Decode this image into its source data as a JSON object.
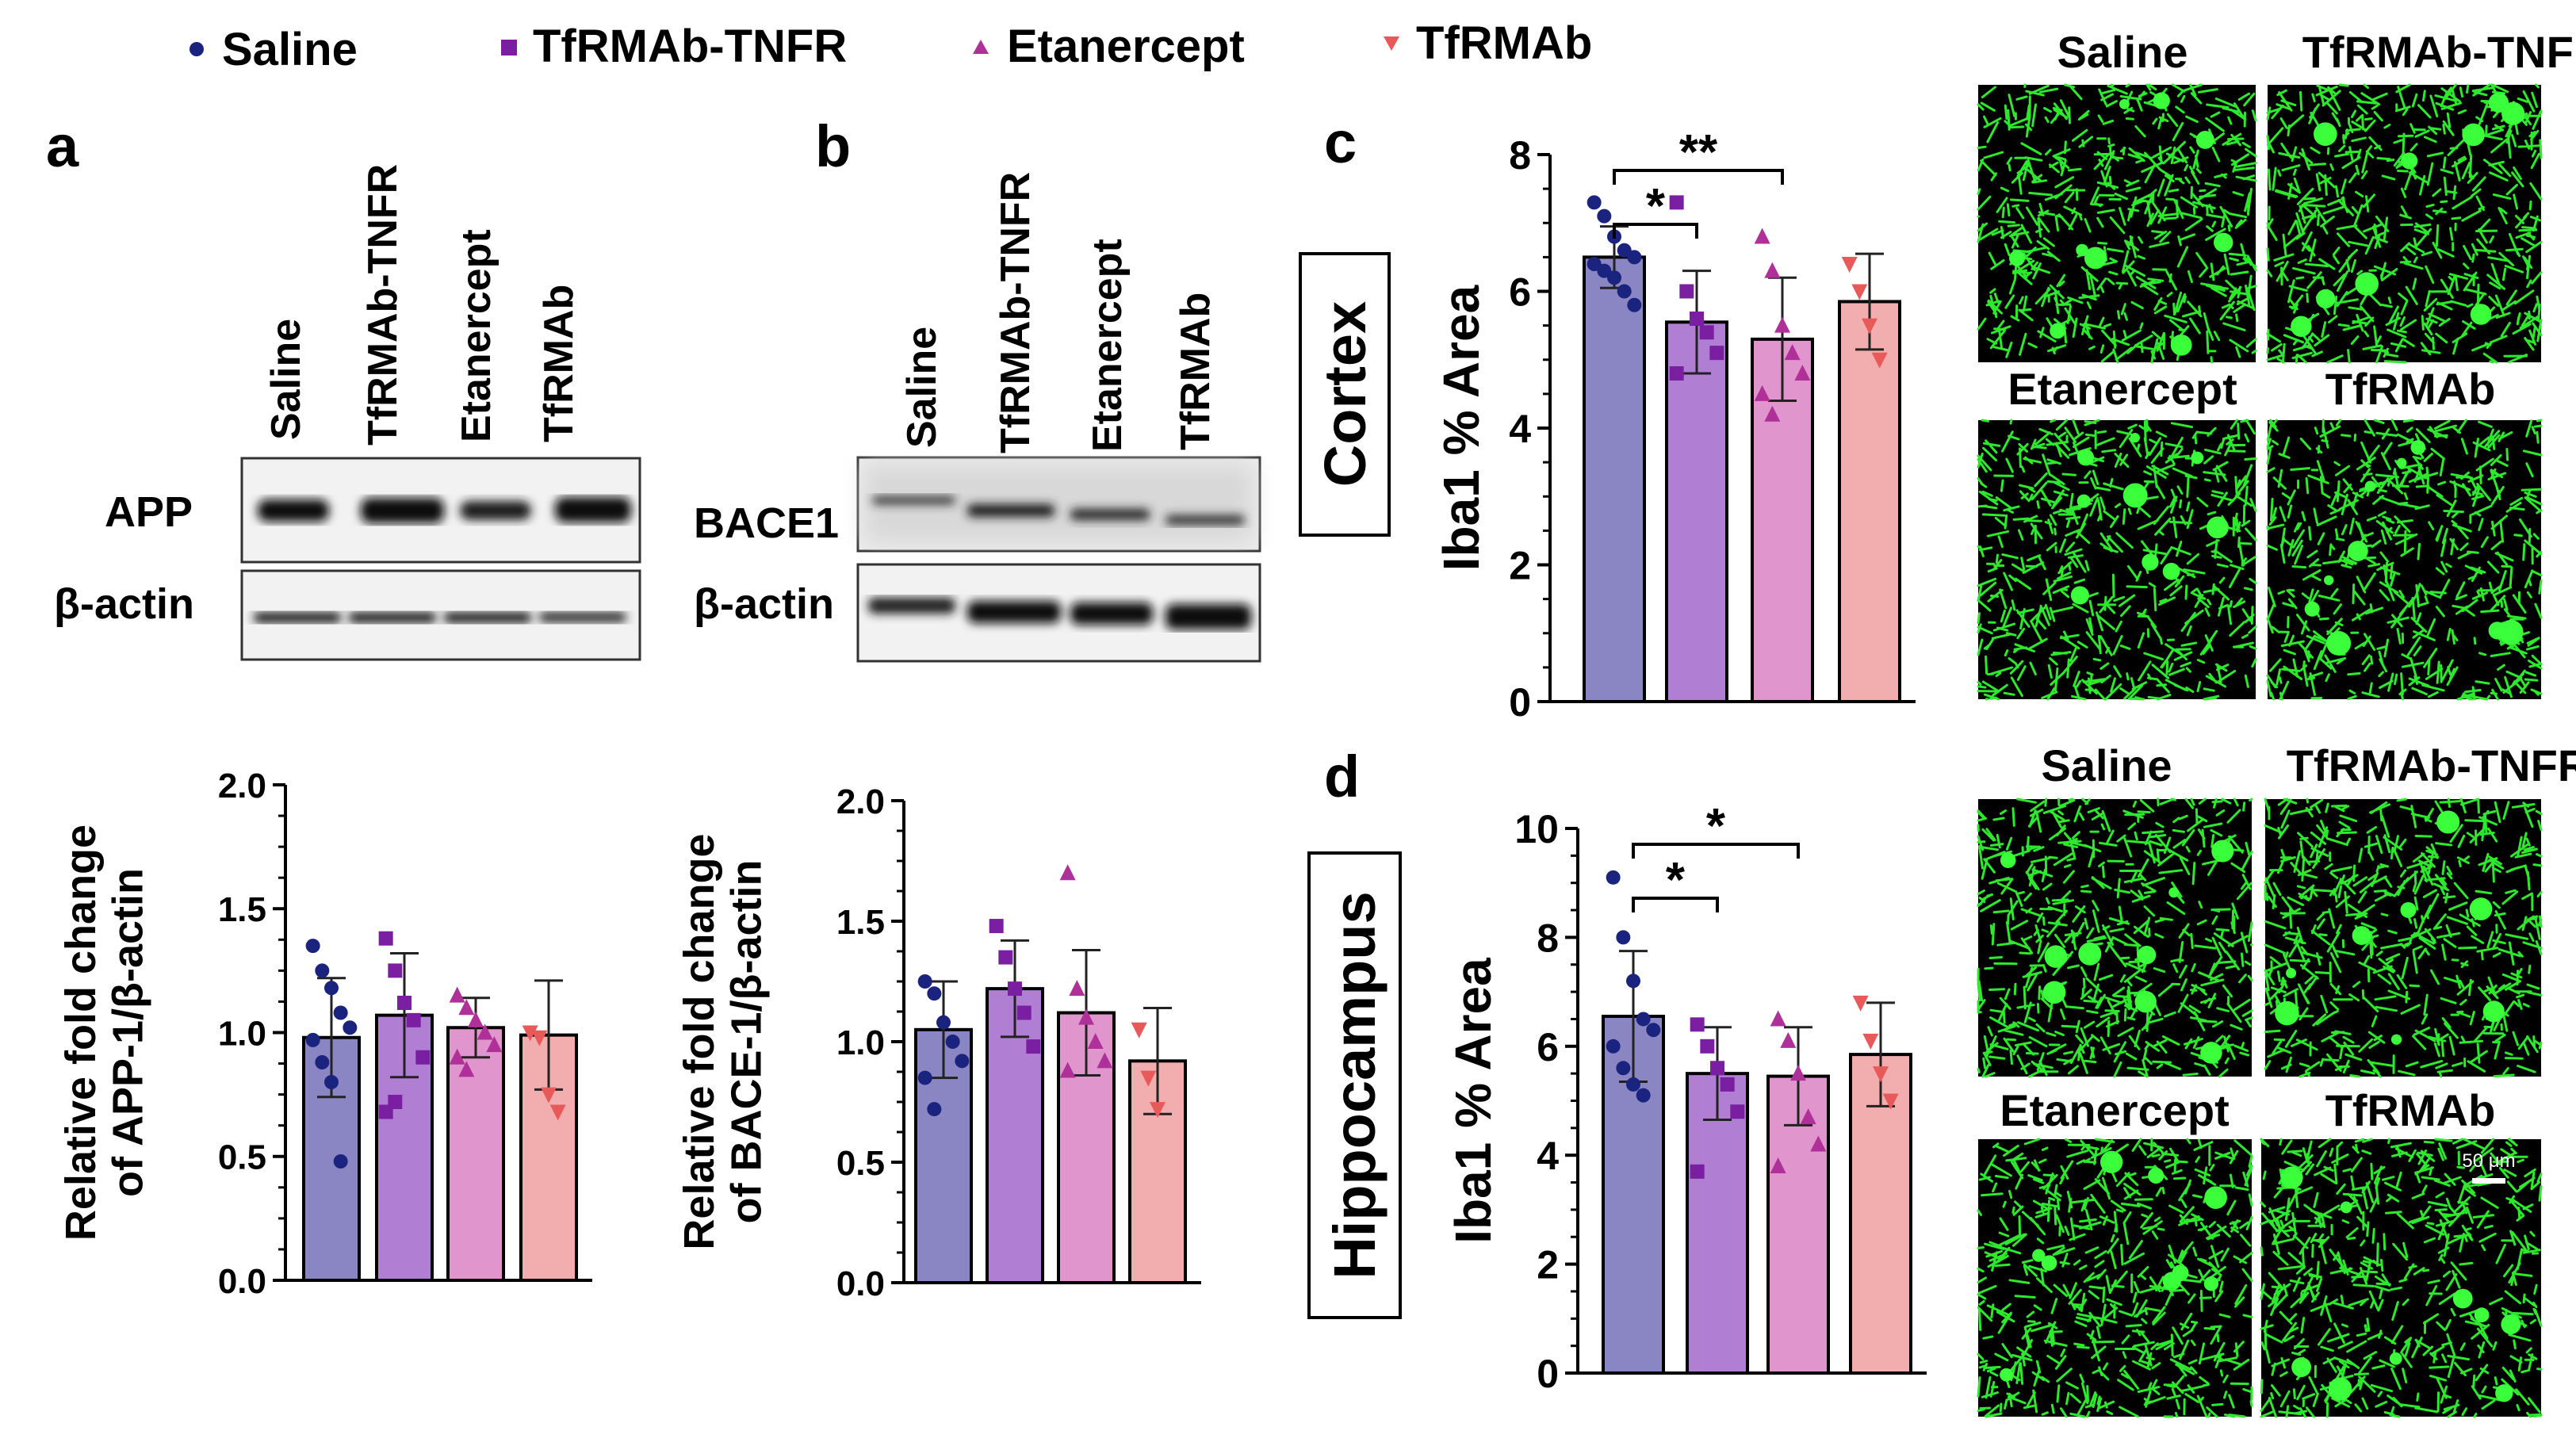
{
  "legend": [
    {
      "label": "Saline",
      "marker": "circle",
      "color": "#1a237e"
    },
    {
      "label": "TfRMAb-TNFR",
      "marker": "square",
      "color": "#7b1fa2"
    },
    {
      "label": "Etanercept",
      "marker": "triangle",
      "color": "#b0309a"
    },
    {
      "label": "TfRMAb",
      "marker": "triangle-down",
      "color": "#e85a5a"
    }
  ],
  "bar_colors": [
    "#8a86c3",
    "#b07fd4",
    "#e095cd",
    "#f2aeaf"
  ],
  "panel_letters": {
    "a": "a",
    "b": "b",
    "c": "c",
    "d": "d"
  },
  "blots": {
    "a": {
      "lanes": [
        "Saline",
        "TfRMAb-TNFR",
        "Etanercept",
        "TfRMAb"
      ],
      "rows": [
        "APP",
        "β-actin"
      ]
    },
    "b": {
      "lanes": [
        "Saline",
        "TfRMAb-TNFR",
        "Etanercept",
        "TfRMAb"
      ],
      "rows": [
        "BACE1",
        "β-actin"
      ]
    }
  },
  "region_labels": {
    "c": "Cortex",
    "d": "Hippocampus"
  },
  "chart_data": [
    {
      "id": "a",
      "type": "bar",
      "categories": [
        "Saline",
        "TfRMAb-TNFR",
        "Etanercept",
        "TfRMAb"
      ],
      "values": [
        0.98,
        1.07,
        1.02,
        0.99
      ],
      "errors": [
        0.24,
        0.25,
        0.12,
        0.22
      ],
      "points": [
        [
          1.35,
          1.25,
          1.18,
          1.08,
          1.02,
          0.97,
          0.88,
          0.8,
          0.48
        ],
        [
          1.38,
          1.25,
          1.12,
          1.05,
          0.9,
          0.68,
          0.72
        ],
        [
          1.15,
          1.1,
          1.05,
          1.0,
          0.95,
          0.9,
          0.85
        ],
        [
          1.0,
          0.98,
          0.75,
          0.68
        ]
      ],
      "title": "",
      "ylabel": "Relative fold change of APP-1/β-actin",
      "ylim": [
        0,
        2.0
      ],
      "yticks": [
        "0.0",
        "0.5",
        "1.0",
        "1.5",
        "2.0"
      ]
    },
    {
      "id": "b",
      "type": "bar",
      "categories": [
        "Saline",
        "TfRMAb-TNFR",
        "Etanercept",
        "TfRMAb"
      ],
      "values": [
        1.05,
        1.22,
        1.12,
        0.92
      ],
      "errors": [
        0.2,
        0.2,
        0.26,
        0.22
      ],
      "points": [
        [
          1.25,
          1.2,
          1.08,
          1.0,
          0.92,
          0.85,
          0.72
        ],
        [
          1.48,
          1.35,
          1.22,
          1.12,
          0.98
        ],
        [
          1.7,
          1.22,
          1.1,
          1.0,
          0.92,
          0.88
        ],
        [
          1.05,
          0.85,
          0.72
        ]
      ],
      "title": "",
      "ylabel": "Relative fold change of BACE-1/β-actin",
      "ylim": [
        0,
        2.0
      ],
      "yticks": [
        "0.0",
        "0.5",
        "1.0",
        "1.5",
        "2.0"
      ]
    },
    {
      "id": "c",
      "type": "bar",
      "categories": [
        "Saline",
        "TfRMAb-TNFR",
        "Etanercept",
        "TfRMAb"
      ],
      "values": [
        6.5,
        5.55,
        5.3,
        5.85
      ],
      "errors": [
        0.45,
        0.75,
        0.9,
        0.7
      ],
      "points": [
        [
          7.3,
          7.1,
          6.8,
          6.6,
          6.5,
          6.4,
          6.3,
          6.2,
          6.0,
          5.8
        ],
        [
          7.3,
          6.0,
          5.6,
          5.4,
          5.1,
          4.8
        ],
        [
          6.8,
          6.3,
          5.5,
          5.1,
          4.8,
          4.5,
          4.2
        ],
        [
          6.4,
          6.0,
          5.5,
          5.0
        ]
      ],
      "significance": [
        {
          "from": 0,
          "to": 1,
          "label": "*"
        },
        {
          "from": 0,
          "to": 2,
          "label": "**"
        }
      ],
      "region": "Cortex",
      "ylabel": "Iba1 % Area",
      "ylim": [
        0,
        8
      ],
      "yticks": [
        "0",
        "2",
        "4",
        "6",
        "8"
      ]
    },
    {
      "id": "d",
      "type": "bar",
      "categories": [
        "Saline",
        "TfRMAb-TNFR",
        "Etanercept",
        "TfRMAb"
      ],
      "values": [
        6.55,
        5.5,
        5.45,
        5.85
      ],
      "errors": [
        1.2,
        0.85,
        0.9,
        0.95
      ],
      "points": [
        [
          9.1,
          8.0,
          7.2,
          6.5,
          6.3,
          6.0,
          5.6,
          5.3,
          5.1
        ],
        [
          6.4,
          6.0,
          5.6,
          5.3,
          4.8,
          3.7
        ],
        [
          6.5,
          6.1,
          5.5,
          4.7,
          4.2,
          3.8
        ],
        [
          6.8,
          6.1,
          5.5,
          5.0
        ]
      ],
      "significance": [
        {
          "from": 0,
          "to": 1,
          "label": "*"
        },
        {
          "from": 0,
          "to": 2,
          "label": "*"
        }
      ],
      "region": "Hippocampus",
      "ylabel": "Iba1 % Area",
      "ylim": [
        0,
        10
      ],
      "yticks": [
        "0",
        "2",
        "4",
        "6",
        "8",
        "10"
      ]
    }
  ],
  "micrographs": {
    "cortex": [
      "Saline",
      "TfRMAb-TNFR",
      "Etanercept",
      "TfRMAb"
    ],
    "hippocampus": [
      "Saline",
      "TfRMAb-TNFR",
      "Etanercept",
      "TfRMAb"
    ],
    "scale_bar": "50 μm"
  }
}
